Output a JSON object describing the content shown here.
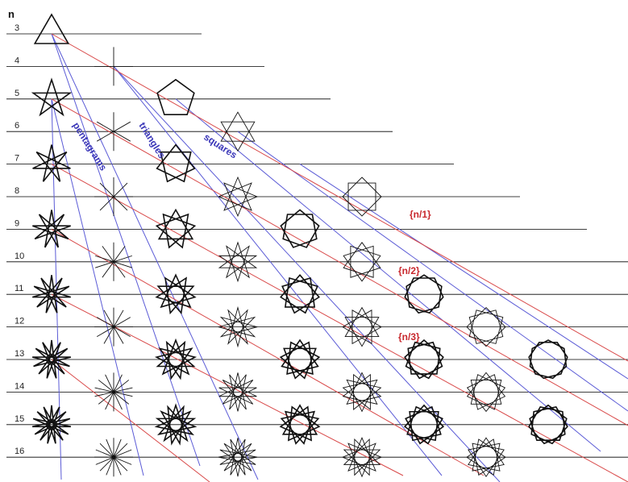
{
  "header": {
    "n_label": "n"
  },
  "rows": [
    "3",
    "4",
    "5",
    "6",
    "7",
    "8",
    "9",
    "10",
    "11",
    "12",
    "13",
    "14",
    "15",
    "16"
  ],
  "family_labels": {
    "pentagrams": "pentagrams",
    "triangles": "triangles",
    "squares": "squares"
  },
  "density_labels": {
    "n1": "{n/1}",
    "n2": "{n/2}",
    "n3": "{n/3}"
  },
  "colors": {
    "row_line": "#000000",
    "family_line": "#5b5bd6",
    "density_line": "#d94a4a",
    "figure_stroke": "#111111"
  },
  "figures": [
    {
      "n": 3,
      "col": 0
    },
    {
      "n": 4,
      "col": 1
    },
    {
      "n": 5,
      "col": 0
    },
    {
      "n": 5,
      "col": 2
    },
    {
      "n": 6,
      "col": 1
    },
    {
      "n": 6,
      "col": 3
    },
    {
      "n": 7,
      "col": 0
    },
    {
      "n": 7,
      "col": 2
    },
    {
      "n": 8,
      "col": 1
    },
    {
      "n": 8,
      "col": 3
    },
    {
      "n": 8,
      "col": 5
    },
    {
      "n": 9,
      "col": 0
    },
    {
      "n": 9,
      "col": 2
    },
    {
      "n": 9,
      "col": 4
    },
    {
      "n": 10,
      "col": 1
    },
    {
      "n": 10,
      "col": 3
    },
    {
      "n": 10,
      "col": 5
    },
    {
      "n": 11,
      "col": 0
    },
    {
      "n": 11,
      "col": 2
    },
    {
      "n": 11,
      "col": 4
    },
    {
      "n": 11,
      "col": 6
    },
    {
      "n": 12,
      "col": 1
    },
    {
      "n": 12,
      "col": 3
    },
    {
      "n": 12,
      "col": 5
    },
    {
      "n": 12,
      "col": 7
    },
    {
      "n": 13,
      "col": 0
    },
    {
      "n": 13,
      "col": 2
    },
    {
      "n": 13,
      "col": 4
    },
    {
      "n": 13,
      "col": 6
    },
    {
      "n": 13,
      "col": 8
    },
    {
      "n": 14,
      "col": 1
    },
    {
      "n": 14,
      "col": 3
    },
    {
      "n": 14,
      "col": 5
    },
    {
      "n": 14,
      "col": 7
    },
    {
      "n": 15,
      "col": 0
    },
    {
      "n": 15,
      "col": 2
    },
    {
      "n": 15,
      "col": 4
    },
    {
      "n": 15,
      "col": 6
    },
    {
      "n": 15,
      "col": 8
    },
    {
      "n": 16,
      "col": 1
    },
    {
      "n": 16,
      "col": 3
    },
    {
      "n": 16,
      "col": 5
    },
    {
      "n": 16,
      "col": 7
    }
  ]
}
